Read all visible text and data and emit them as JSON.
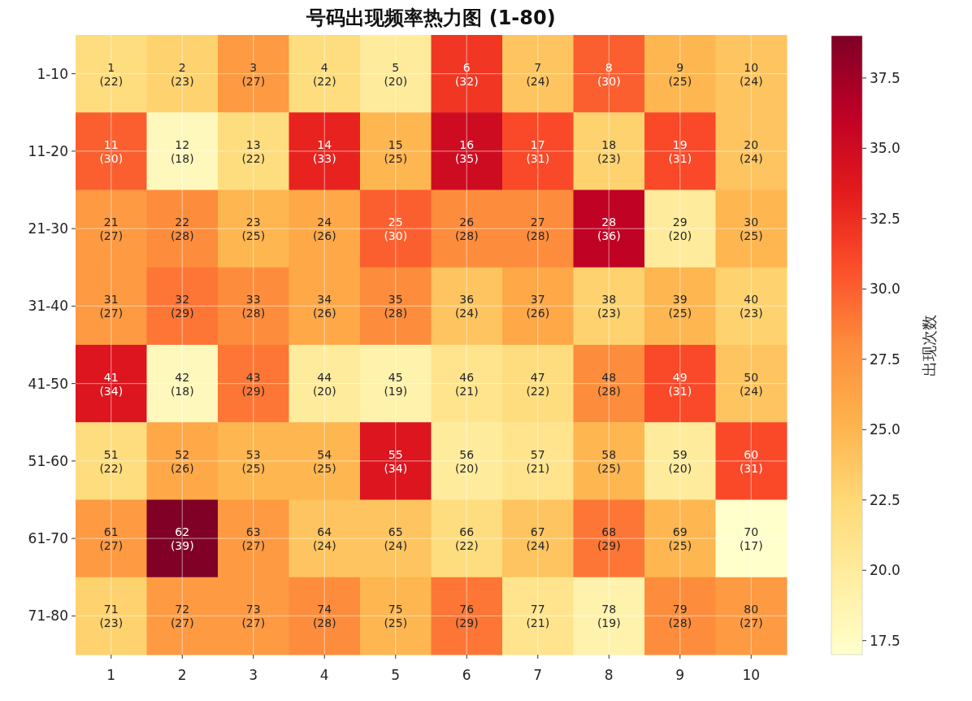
{
  "chart_data": {
    "type": "heatmap",
    "title": "号码出现频率热力图 (1-80)",
    "clabel": "出现次数",
    "categories": [
      "1",
      "2",
      "3",
      "4",
      "5",
      "6",
      "7",
      "8",
      "9",
      "10"
    ],
    "y_categories": [
      "1-10",
      "11-20",
      "21-30",
      "31-40",
      "41-50",
      "51-60",
      "61-70",
      "71-80"
    ],
    "cells": [
      [
        22,
        23,
        27,
        22,
        20,
        32,
        24,
        30,
        25,
        24
      ],
      [
        30,
        18,
        22,
        33,
        25,
        35,
        31,
        23,
        31,
        24
      ],
      [
        27,
        28,
        25,
        26,
        30,
        28,
        28,
        36,
        20,
        25
      ],
      [
        27,
        29,
        28,
        26,
        28,
        24,
        26,
        23,
        25,
        23
      ],
      [
        34,
        18,
        29,
        20,
        19,
        21,
        22,
        28,
        31,
        24
      ],
      [
        22,
        26,
        25,
        25,
        34,
        20,
        21,
        25,
        20,
        31
      ],
      [
        27,
        39,
        27,
        24,
        24,
        22,
        24,
        29,
        25,
        17
      ],
      [
        23,
        27,
        27,
        28,
        25,
        29,
        21,
        19,
        28,
        27
      ]
    ],
    "cell_labels": [
      [
        "1\n(22)",
        "2\n(23)",
        "3\n(27)",
        "4\n(22)",
        "5\n(20)",
        "6\n(32)",
        "7\n(24)",
        "8\n(30)",
        "9\n(25)",
        "10\n(24)"
      ],
      [
        "11\n(30)",
        "12\n(18)",
        "13\n(22)",
        "14\n(33)",
        "15\n(25)",
        "16\n(35)",
        "17\n(31)",
        "18\n(23)",
        "19\n(31)",
        "20\n(24)"
      ],
      [
        "21\n(27)",
        "22\n(28)",
        "23\n(25)",
        "24\n(26)",
        "25\n(30)",
        "26\n(28)",
        "27\n(28)",
        "28\n(36)",
        "29\n(20)",
        "30\n(25)"
      ],
      [
        "31\n(27)",
        "32\n(29)",
        "33\n(28)",
        "34\n(26)",
        "35\n(28)",
        "36\n(24)",
        "37\n(26)",
        "38\n(23)",
        "39\n(25)",
        "40\n(23)"
      ],
      [
        "41\n(34)",
        "42\n(18)",
        "43\n(29)",
        "44\n(20)",
        "45\n(19)",
        "46\n(21)",
        "47\n(22)",
        "48\n(28)",
        "49\n(31)",
        "50\n(24)"
      ],
      [
        "51\n(22)",
        "52\n(26)",
        "53\n(25)",
        "54\n(25)",
        "55\n(34)",
        "56\n(20)",
        "57\n(21)",
        "58\n(25)",
        "59\n(20)",
        "60\n(31)"
      ],
      [
        "61\n(27)",
        "62\n(39)",
        "63\n(27)",
        "64\n(24)",
        "65\n(24)",
        "66\n(22)",
        "67\n(24)",
        "68\n(29)",
        "69\n(25)",
        "70\n(17)"
      ],
      [
        "71\n(23)",
        "72\n(27)",
        "73\n(27)",
        "74\n(28)",
        "75\n(25)",
        "76\n(29)",
        "77\n(21)",
        "78\n(19)",
        "79\n(28)",
        "80\n(27)"
      ]
    ],
    "clim": [
      17,
      39
    ],
    "cticks": [
      17.5,
      {
        "value": 20,
        "label": "20.0"
      },
      22.5,
      {
        "value": 25,
        "label": "25.0"
      },
      27.5,
      {
        "value": 30,
        "label": "30.0"
      },
      32.5,
      {
        "value": 35,
        "label": "35.0"
      },
      37.5
    ],
    "grid": true
  }
}
